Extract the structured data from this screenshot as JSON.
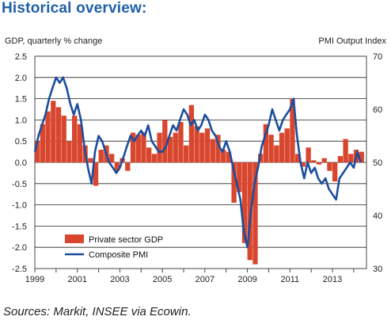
{
  "title": "Historical overview:",
  "source": "Sources: Markit, INSEE via Ecowin.",
  "colors": {
    "gdp": "#d9462e",
    "pmi": "#1c4e9c",
    "title": "#1f5fa8"
  },
  "chart_data": {
    "type": "bar",
    "ylabel_left": "GDP, quarterly % change",
    "ylabel_right": "PMI Output Index",
    "ylim_left": [
      -2.5,
      2.5
    ],
    "ylim_right": [
      30,
      70
    ],
    "xlim": [
      1999,
      2014.6
    ],
    "yticks_left": [
      "2.5",
      "2.0",
      "1.5",
      "1.0",
      "0.5",
      "0.0",
      "-0.5",
      "-1.0",
      "-1.5",
      "-2.0",
      "-2.5"
    ],
    "yticks_right": [
      "70",
      "60",
      "50",
      "40",
      "30"
    ],
    "xticks": [
      "1999",
      "2001",
      "2003",
      "2005",
      "2007",
      "2009",
      "2011",
      "2013"
    ],
    "grid": true,
    "legend": {
      "position": "bottom-left",
      "entries": [
        "Private sector GDP",
        "Composite PMI"
      ]
    },
    "series": [
      {
        "name": "Private sector GDP",
        "type": "bar",
        "axis": "left",
        "x": [
          1999.0,
          1999.25,
          1999.5,
          1999.75,
          2000.0,
          2000.25,
          2000.5,
          2000.75,
          2001.0,
          2001.25,
          2001.5,
          2001.75,
          2002.0,
          2002.25,
          2002.5,
          2002.75,
          2003.0,
          2003.25,
          2003.5,
          2003.75,
          2004.0,
          2004.25,
          2004.5,
          2004.75,
          2005.0,
          2005.25,
          2005.5,
          2005.75,
          2006.0,
          2006.25,
          2006.5,
          2006.75,
          2007.0,
          2007.25,
          2007.5,
          2007.75,
          2008.0,
          2008.25,
          2008.5,
          2008.75,
          2009.0,
          2009.25,
          2009.5,
          2009.75,
          2010.0,
          2010.25,
          2010.5,
          2010.75,
          2011.0,
          2011.25,
          2011.5,
          2011.75,
          2012.0,
          2012.25,
          2012.5,
          2012.75,
          2013.0,
          2013.25,
          2013.5,
          2013.75,
          2014.0,
          2014.25
        ],
        "values": [
          0.5,
          0.9,
          1.2,
          1.45,
          1.3,
          1.1,
          0.5,
          1.1,
          0.9,
          0.4,
          0.1,
          -0.55,
          0.3,
          0.4,
          0.2,
          -0.2,
          0.1,
          -0.2,
          0.7,
          0.65,
          0.7,
          0.35,
          0.2,
          0.7,
          1.0,
          0.6,
          0.7,
          0.95,
          0.4,
          1.35,
          0.85,
          0.7,
          0.8,
          0.55,
          0.65,
          0.3,
          0.25,
          -0.95,
          -0.7,
          -1.9,
          -2.3,
          -2.4,
          0.2,
          0.9,
          0.65,
          0.4,
          0.7,
          0.8,
          1.5,
          0.2,
          -0.1,
          0.35,
          0.05,
          -0.05,
          0.1,
          -0.2,
          -0.45,
          0.15,
          0.55,
          0.2,
          0.3,
          0.25
        ]
      },
      {
        "name": "Composite PMI",
        "type": "line",
        "axis": "right",
        "x": [
          1999.0,
          1999.17,
          1999.33,
          1999.5,
          1999.67,
          1999.83,
          2000.0,
          2000.17,
          2000.33,
          2000.5,
          2000.67,
          2000.83,
          2001.0,
          2001.17,
          2001.33,
          2001.5,
          2001.67,
          2001.83,
          2002.0,
          2002.17,
          2002.33,
          2002.5,
          2002.67,
          2002.83,
          2003.0,
          2003.17,
          2003.33,
          2003.5,
          2003.67,
          2003.83,
          2004.0,
          2004.17,
          2004.33,
          2004.5,
          2004.67,
          2004.83,
          2005.0,
          2005.17,
          2005.33,
          2005.5,
          2005.67,
          2005.83,
          2006.0,
          2006.17,
          2006.33,
          2006.5,
          2006.67,
          2006.83,
          2007.0,
          2007.17,
          2007.33,
          2007.5,
          2007.67,
          2007.83,
          2008.0,
          2008.17,
          2008.33,
          2008.5,
          2008.67,
          2008.83,
          2009.0,
          2009.17,
          2009.33,
          2009.5,
          2009.67,
          2009.83,
          2010.0,
          2010.17,
          2010.33,
          2010.5,
          2010.67,
          2010.83,
          2011.0,
          2011.17,
          2011.33,
          2011.5,
          2011.67,
          2011.83,
          2012.0,
          2012.17,
          2012.33,
          2012.5,
          2012.67,
          2012.83,
          2013.0,
          2013.17,
          2013.33,
          2013.5,
          2013.67,
          2013.83,
          2014.0,
          2014.17,
          2014.33
        ],
        "values": [
          52,
          55,
          57,
          59,
          62,
          64,
          66,
          65,
          66,
          64,
          61,
          59,
          61,
          58,
          53,
          49,
          46,
          52,
          55,
          54,
          52,
          50,
          49,
          48,
          49,
          51,
          53,
          55,
          54,
          55,
          56,
          55,
          57,
          54,
          53,
          52,
          52,
          53,
          55,
          57,
          56,
          58,
          60,
          59,
          57,
          58,
          56,
          57,
          59,
          58,
          56,
          55,
          53,
          52,
          54,
          52,
          49,
          46,
          43,
          37,
          34,
          41,
          46,
          49,
          53,
          55,
          57,
          60,
          58,
          56,
          58,
          59,
          60,
          62,
          55,
          50,
          47,
          50,
          48,
          49,
          47,
          46,
          47,
          45,
          44,
          43,
          47,
          48,
          49,
          50,
          49,
          52,
          50
        ]
      }
    ]
  }
}
